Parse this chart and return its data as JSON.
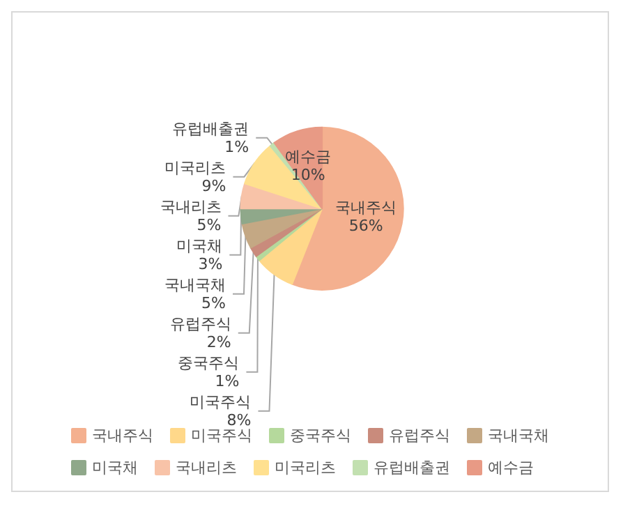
{
  "chart_data": {
    "type": "pie",
    "categories": [
      "국내주식",
      "미국주식",
      "중국주식",
      "유럽주식",
      "국내국채",
      "미국채",
      "국내리츠",
      "미국리츠",
      "유럽배출권",
      "예수금"
    ],
    "values": [
      56,
      8,
      1,
      2,
      5,
      3,
      5,
      9,
      1,
      10
    ],
    "value_labels": [
      "56%",
      "8%",
      "1%",
      "2%",
      "5%",
      "3%",
      "5%",
      "9%",
      "1%",
      "10%"
    ],
    "colors": [
      "#f4b08f",
      "#ffd88a",
      "#b5d99c",
      "#c98b7c",
      "#c4a884",
      "#8fa88a",
      "#f8c3a8",
      "#ffe08f",
      "#c2e0b0",
      "#e89a85"
    ],
    "legend": "bottom"
  }
}
